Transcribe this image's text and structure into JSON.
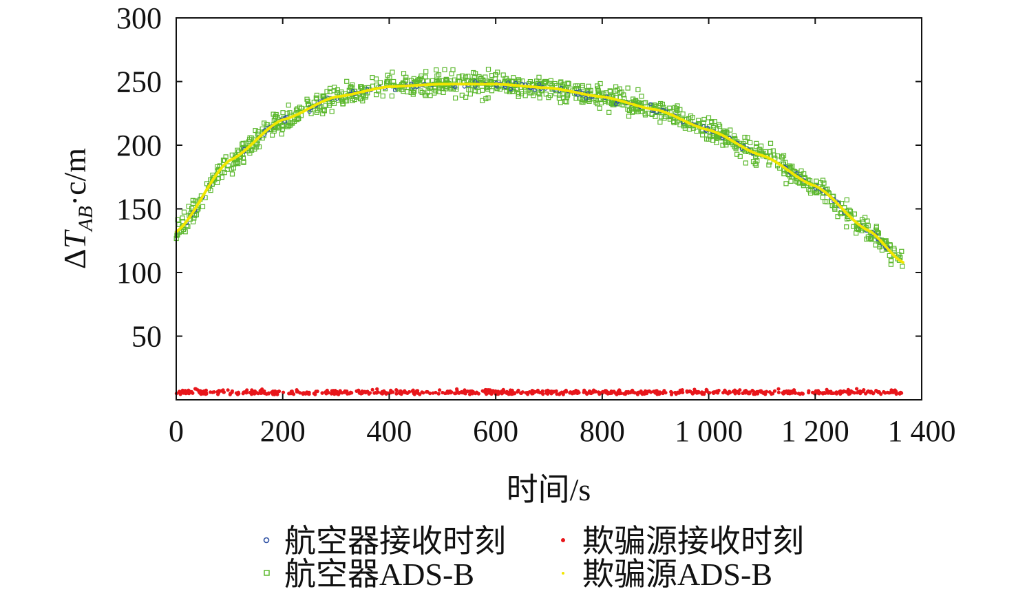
{
  "chart_data": {
    "type": "scatter",
    "xlabel": "时间/s",
    "ylabel_parts": {
      "delta": "Δ",
      "T": "T",
      "sub": "AB",
      "rest": "·c/m"
    },
    "xlim": [
      0,
      1400
    ],
    "ylim": [
      0,
      300
    ],
    "x_ticks": [
      0,
      200,
      400,
      600,
      800,
      1000,
      1200,
      1400
    ],
    "x_tick_labels": [
      "0",
      "200",
      "400",
      "600",
      "800",
      "1 000",
      "1 200",
      "1 400"
    ],
    "y_ticks": [
      50,
      100,
      150,
      200,
      250,
      300
    ],
    "y_tick_labels": [
      "50",
      "100",
      "150",
      "200",
      "250",
      "300"
    ],
    "x_range": [
      0,
      1365
    ],
    "aircraft_fit_points": [
      {
        "x": 0,
        "y": 132
      },
      {
        "x": 100,
        "y": 188
      },
      {
        "x": 200,
        "y": 220
      },
      {
        "x": 300,
        "y": 238
      },
      {
        "x": 400,
        "y": 246
      },
      {
        "x": 500,
        "y": 248
      },
      {
        "x": 600,
        "y": 248
      },
      {
        "x": 700,
        "y": 245
      },
      {
        "x": 800,
        "y": 238
      },
      {
        "x": 900,
        "y": 228
      },
      {
        "x": 1000,
        "y": 212
      },
      {
        "x": 1100,
        "y": 192
      },
      {
        "x": 1200,
        "y": 168
      },
      {
        "x": 1300,
        "y": 133
      },
      {
        "x": 1365,
        "y": 108
      }
    ],
    "spoof_level": 4,
    "series": [
      {
        "name": "航空器接收时刻",
        "color": "#2c4fa3",
        "marker": "circle"
      },
      {
        "name": "欺骗源接收时刻",
        "color": "#e8161b",
        "marker": "dot"
      },
      {
        "name": "航空器ADS-B",
        "color": "#5cb82e",
        "marker": "square"
      },
      {
        "name": "欺骗源ADS-B",
        "color": "#f2e600",
        "marker": "dot"
      }
    ],
    "legend_position": "bottom",
    "grid": false
  }
}
